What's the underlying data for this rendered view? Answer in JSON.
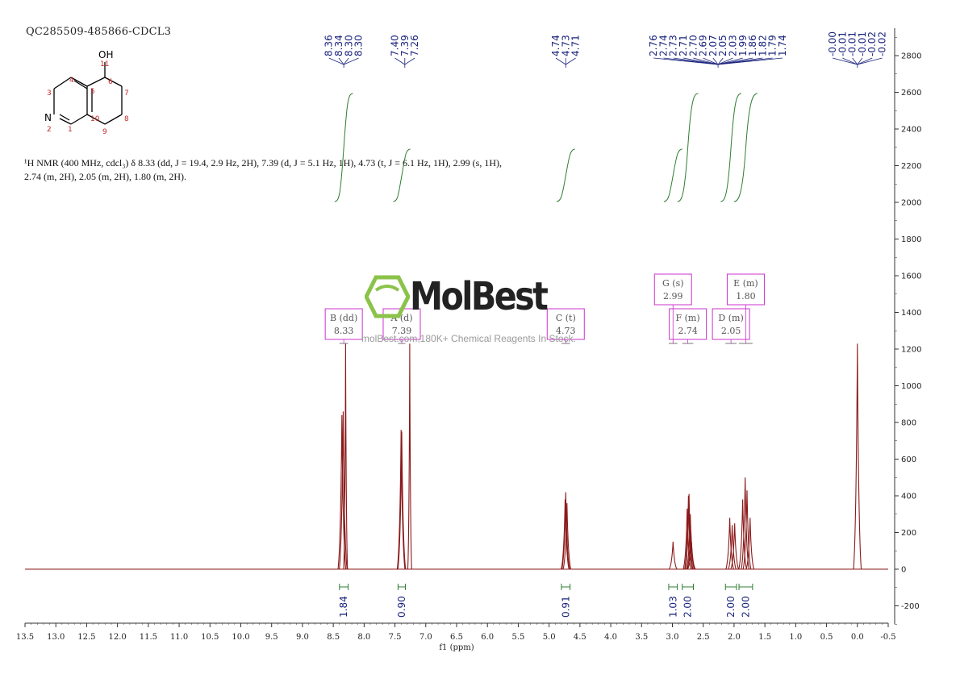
{
  "header": {
    "sample_id": "QC285509-485866-CDCL3",
    "nmr_description": "¹H NMR (400 MHz, cdcl₃) δ 8.33 (dd, J = 19.4, 2.9 Hz, 2H), 7.39 (d, J = 5.1 Hz, 1H), 4.73 (t, J = 6.1 Hz, 1H), 2.99 (s, 1H), 2.74 (m, 2H), 2.05 (m, 2H), 1.80 (m, 2H)."
  },
  "molecule": {
    "hydroxyl_label": "OH",
    "nitrogen_label": "N",
    "atom_numbers": [
      "1",
      "2",
      "3",
      "4",
      "5",
      "6",
      "7",
      "8",
      "9",
      "10",
      "11"
    ]
  },
  "watermark": {
    "brand": "MolBest",
    "tagline": "molBest.com,180K+ Chemical Reagents In Stock."
  },
  "colors": {
    "spectrum": "#8b1a1a",
    "integral": "#2e7d32",
    "peak_labels": "#1a237e",
    "multiplet_boxes": "#cc33cc",
    "axis": "#333333"
  },
  "chart_data": {
    "type": "line",
    "xlabel": "f1 (ppm)",
    "x_axis_reversed": true,
    "xlim": [
      13.5,
      -0.5
    ],
    "ylim": [
      -300,
      2950
    ],
    "x_ticks": [
      "13.5",
      "13.0",
      "12.5",
      "12.0",
      "11.5",
      "11.0",
      "10.5",
      "10.0",
      "9.5",
      "9.0",
      "8.5",
      "8.0",
      "7.5",
      "7.0",
      "6.5",
      "6.0",
      "5.5",
      "5.0",
      "4.5",
      "4.0",
      "3.5",
      "3.0",
      "2.5",
      "2.0",
      "1.5",
      "1.0",
      "0.5",
      "0.0",
      "-0.5"
    ],
    "y_ticks": [
      "-200",
      "0",
      "200",
      "400",
      "600",
      "800",
      "1000",
      "1200",
      "1400",
      "1600",
      "1800",
      "2000",
      "2200",
      "2400",
      "2600",
      "2800"
    ],
    "peaks": [
      {
        "ppm": 8.36,
        "intensity": 840
      },
      {
        "ppm": 8.34,
        "intensity": 860
      },
      {
        "ppm": 8.3,
        "intensity": 1230
      },
      {
        "ppm": 7.4,
        "intensity": 760
      },
      {
        "ppm": 7.39,
        "intensity": 750
      },
      {
        "ppm": 7.26,
        "intensity": 1230
      },
      {
        "ppm": 4.74,
        "intensity": 380
      },
      {
        "ppm": 4.73,
        "intensity": 420
      },
      {
        "ppm": 4.71,
        "intensity": 360
      },
      {
        "ppm": 2.99,
        "intensity": 150
      },
      {
        "ppm": 2.76,
        "intensity": 330
      },
      {
        "ppm": 2.74,
        "intensity": 400
      },
      {
        "ppm": 2.73,
        "intensity": 410
      },
      {
        "ppm": 2.71,
        "intensity": 300
      },
      {
        "ppm": 2.7,
        "intensity": 210
      },
      {
        "ppm": 2.69,
        "intensity": 150
      },
      {
        "ppm": 2.07,
        "intensity": 280
      },
      {
        "ppm": 2.03,
        "intensity": 240
      },
      {
        "ppm": 1.99,
        "intensity": 250
      },
      {
        "ppm": 1.86,
        "intensity": 380
      },
      {
        "ppm": 1.82,
        "intensity": 500
      },
      {
        "ppm": 1.79,
        "intensity": 430
      },
      {
        "ppm": 1.74,
        "intensity": 280
      },
      {
        "ppm": 0.0,
        "intensity": 1230
      }
    ],
    "peak_labels": [
      {
        "group": [
          "8.36",
          "8.34",
          "8.30",
          "8.30"
        ],
        "ppm": 8.33
      },
      {
        "group": [
          "7.40",
          "7.39",
          "7.26"
        ],
        "ppm": 7.34
      },
      {
        "group": [
          "4.74",
          "4.73",
          "4.71"
        ],
        "ppm": 4.73
      },
      {
        "group": [
          "2.76",
          "2.74",
          "2.73",
          "2.71",
          "2.70",
          "2.69",
          "2.07",
          "2.05",
          "2.03",
          "1.99",
          "1.86",
          "1.82",
          "1.79",
          "1.74"
        ],
        "ppm": 2.26
      },
      {
        "group": [
          "-0.00",
          "-0.01",
          "-0.01",
          "-0.01",
          "-0.02",
          "-0.02"
        ],
        "ppm": 0.0
      }
    ],
    "multiplets": [
      {
        "letter": "B (dd)",
        "shift": "8.33",
        "from": 8.4,
        "to": 8.26
      },
      {
        "letter": "A (d)",
        "shift": "7.39",
        "from": 7.45,
        "to": 7.33
      },
      {
        "letter": "C (t)",
        "shift": "4.73",
        "from": 4.8,
        "to": 4.66
      },
      {
        "letter": "G (s)",
        "shift": "2.99",
        "from": 3.06,
        "to": 2.92
      },
      {
        "letter": "F (m)",
        "shift": "2.74",
        "from": 2.84,
        "to": 2.66
      },
      {
        "letter": "D (m)",
        "shift": "2.05",
        "from": 2.14,
        "to": 1.96
      },
      {
        "letter": "E (m)",
        "shift": "1.80",
        "from": 1.92,
        "to": 1.7
      }
    ],
    "integrals": [
      {
        "value": "1.84",
        "from": 8.4,
        "to": 8.26
      },
      {
        "value": "0.90",
        "from": 7.45,
        "to": 7.33
      },
      {
        "value": "0.91",
        "from": 4.8,
        "to": 4.66
      },
      {
        "value": "1.03",
        "from": 3.06,
        "to": 2.92
      },
      {
        "value": "2.00",
        "from": 2.84,
        "to": 2.66
      },
      {
        "value": "2.00",
        "from": 2.14,
        "to": 1.96
      },
      {
        "value": "2.00",
        "from": 1.92,
        "to": 1.7
      }
    ]
  }
}
